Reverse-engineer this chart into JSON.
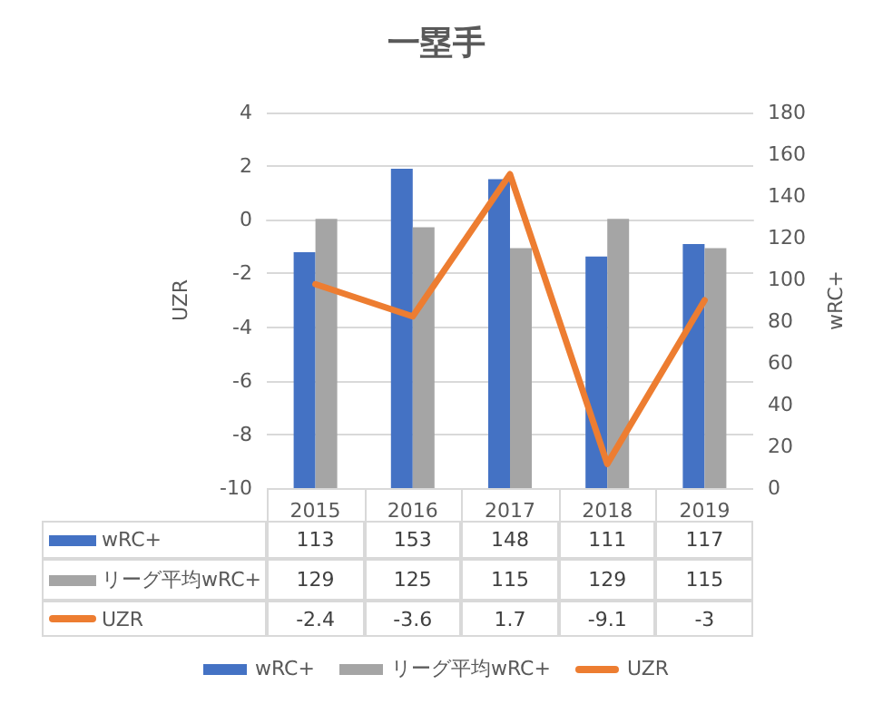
{
  "chart_data": {
    "type": "bar",
    "title": "一塁手",
    "categories": [
      "2015",
      "2016",
      "2017",
      "2018",
      "2019"
    ],
    "series": [
      {
        "name": "wRC+",
        "color": "#4472c4",
        "values": [
          113,
          153,
          148,
          111,
          117
        ],
        "axis": "y2"
      },
      {
        "name": "リーグ平均wRC+",
        "color": "#a5a5a5",
        "values": [
          129,
          125,
          115,
          129,
          115
        ],
        "axis": "y2"
      },
      {
        "name": "UZR",
        "type": "line",
        "color": "#ed7d31",
        "values": [
          -2.4,
          -3.6,
          1.7,
          -9.1,
          -3
        ],
        "axis": "y"
      }
    ],
    "ylabel": "UZR",
    "y2label": "wRC+",
    "ylim": [
      -10,
      4
    ],
    "yticks": [
      -10,
      -8,
      -6,
      -4,
      -2,
      0,
      2,
      4
    ],
    "y2lim": [
      0,
      180
    ],
    "y2ticks": [
      0,
      20,
      40,
      60,
      80,
      100,
      120,
      140,
      160,
      180
    ],
    "grid": "y",
    "legend": "bottom",
    "marker": "none",
    "line_style": "solid",
    "data_labels": true
  }
}
